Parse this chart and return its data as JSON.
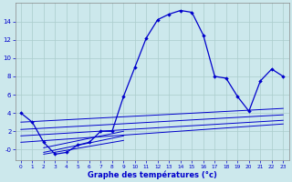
{
  "xlabel": "Graphe des températures (°c)",
  "bg_color": "#cce8ec",
  "grid_color": "#aacccc",
  "line_color": "#0000cc",
  "xlim": [
    -0.5,
    23.5
  ],
  "ylim": [
    -1.2,
    16.0
  ],
  "xticks": [
    0,
    1,
    2,
    3,
    4,
    5,
    6,
    7,
    8,
    9,
    10,
    11,
    12,
    13,
    14,
    15,
    16,
    17,
    18,
    19,
    20,
    21,
    22,
    23
  ],
  "yticks": [
    0,
    2,
    4,
    6,
    8,
    10,
    12,
    14
  ],
  "ytick_labels": [
    "-0",
    "2",
    "4",
    "6",
    "8",
    "10",
    "12",
    "14"
  ],
  "main_x": [
    0,
    1,
    2,
    3,
    4,
    5,
    6,
    7,
    8,
    9,
    10,
    11,
    12,
    13,
    14,
    15,
    16,
    17,
    18,
    19,
    20,
    21,
    22,
    23
  ],
  "main_y": [
    4.0,
    3.0,
    0.8,
    -0.5,
    -0.3,
    0.5,
    0.8,
    2.0,
    2.0,
    5.8,
    9.0,
    12.2,
    14.2,
    14.8,
    15.2,
    15.0,
    12.5,
    8.0,
    7.8,
    5.8,
    4.2,
    7.5,
    8.8,
    8.0
  ],
  "lines": [
    {
      "x": [
        0,
        23
      ],
      "y": [
        3.0,
        4.5
      ]
    },
    {
      "x": [
        0,
        23
      ],
      "y": [
        2.2,
        3.8
      ]
    },
    {
      "x": [
        0,
        23
      ],
      "y": [
        1.5,
        3.2
      ]
    },
    {
      "x": [
        0,
        23
      ],
      "y": [
        0.8,
        2.8
      ]
    },
    {
      "x": [
        2,
        9
      ],
      "y": [
        0.2,
        2.0
      ]
    },
    {
      "x": [
        2,
        9
      ],
      "y": [
        -0.3,
        1.5
      ]
    },
    {
      "x": [
        2,
        9
      ],
      "y": [
        -0.5,
        1.0
      ]
    }
  ]
}
